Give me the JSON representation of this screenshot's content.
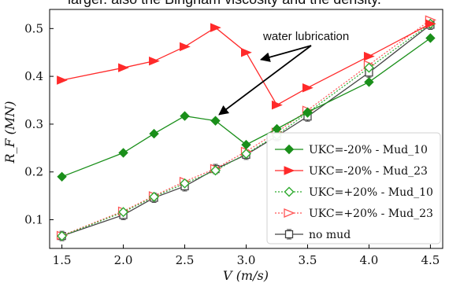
{
  "caption_fragment": "larger. also the Bingham viscosity and the density.",
  "chart_data": {
    "type": "line",
    "x": [
      1.5,
      2.0,
      2.25,
      2.5,
      2.75,
      3.0,
      3.25,
      3.5,
      4.0,
      4.5
    ],
    "xlabel": "V (m/s)",
    "ylabel": "R_F (MN)",
    "xlim": [
      1.4,
      4.6
    ],
    "ylim": [
      0.04,
      0.54
    ],
    "xticks": [
      "1.5",
      "2.0",
      "2.5",
      "3.0",
      "3.5",
      "4.0",
      "4.5"
    ],
    "yticks": [
      "0.1",
      "0.2",
      "0.3",
      "0.4",
      "0.5"
    ],
    "grid": false,
    "legend_position": "bottom-right",
    "series": [
      {
        "name": "UKC=-20% - Mud_10",
        "color": "#1a8f1a",
        "marker": "diamond-filled",
        "line": "solid",
        "values": [
          0.19,
          0.24,
          0.28,
          0.317,
          0.307,
          0.257,
          0.29,
          0.325,
          0.388,
          0.48
        ]
      },
      {
        "name": "UKC=-20% - Mud_23",
        "color": "#ff2a2a",
        "marker": "triangle-right-filled",
        "line": "solid",
        "values": [
          0.392,
          0.418,
          0.432,
          0.462,
          0.502,
          0.45,
          0.34,
          0.376,
          0.442,
          0.51
        ]
      },
      {
        "name": "UKC=+20% - Mud_10",
        "color": "#2eaa2e",
        "marker": "diamond-open",
        "line": "dotted",
        "values": [
          0.066,
          0.116,
          0.148,
          0.176,
          0.203,
          0.238,
          0.277,
          0.324,
          0.418,
          0.51
        ]
      },
      {
        "name": "UKC=+20% - Mud_23",
        "color": "#ff5555",
        "marker": "triangle-right-open",
        "line": "dotted",
        "values": [
          0.067,
          0.118,
          0.15,
          0.18,
          0.207,
          0.243,
          0.283,
          0.329,
          0.424,
          0.518
        ]
      },
      {
        "name": "no mud",
        "color": "#444444",
        "marker": "square-open",
        "line": "solid",
        "values": [
          0.066,
          0.11,
          0.146,
          0.17,
          0.206,
          0.236,
          0.275,
          0.316,
          0.408,
          0.508
        ]
      }
    ],
    "annotations": [
      {
        "text": "water lubrication",
        "arrow_targets": [
          {
            "x": 3.12,
            "y": 0.435
          },
          {
            "x": 2.78,
            "y": 0.32
          }
        ]
      }
    ]
  }
}
